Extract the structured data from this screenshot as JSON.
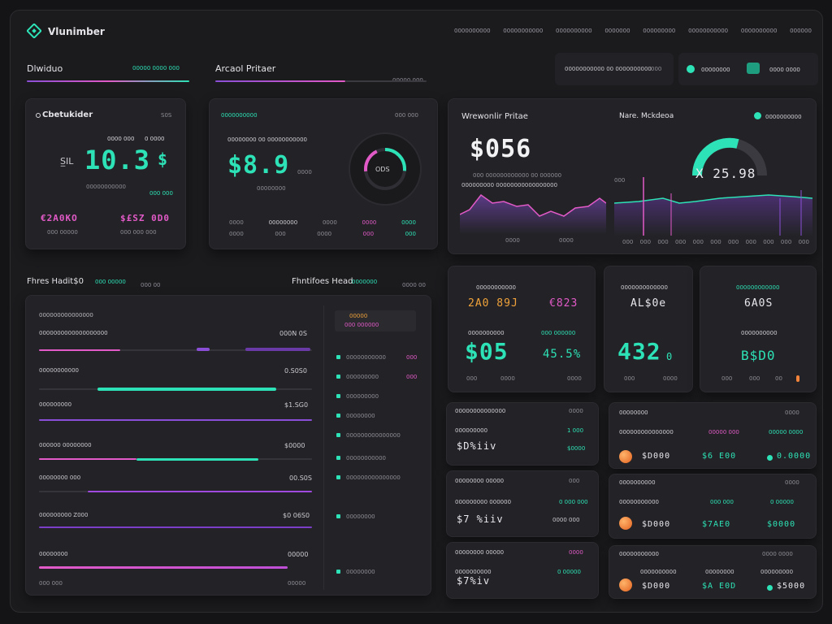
{
  "header": {
    "app_name": "Vlunimber",
    "nav": [
      "0000000000",
      "00000000000",
      "0000000000",
      "0000000",
      "000000000",
      "00000000000",
      "0000000000",
      "000000"
    ]
  },
  "subheader": {
    "left_title": "Dlwiduo",
    "left_meta": "00000 0000 000",
    "mid_title": "Arcaol Pritaer",
    "mid_meta": "00000  000",
    "search_text": "00000000000 00 0000000000",
    "search_small": "000",
    "pill1_text": "00000000",
    "pill2_text": "0000 0000"
  },
  "card1": {
    "title": "Cbetukider",
    "corner": "S0S",
    "sub_a": "0000 000",
    "sub_b": "0 0000",
    "prefix": "S̲IL",
    "value": "10.3",
    "suffix": "$",
    "caption": "00000000000",
    "tag": "000 000",
    "left_val": "€2A0KO",
    "right_val": "$£SZ 0D0",
    "left_sub": "000 00000",
    "right_sub": "000 000 000"
  },
  "card2": {
    "header": "0000000000",
    "meta_right": "000 000",
    "sub_a": "00000000  00  00000000000",
    "value": "$8.9",
    "unit": "0000",
    "caption": "00000000",
    "ring_value": "ODS",
    "row1": [
      "0000",
      "00000000",
      "0000",
      "0000",
      "0000"
    ],
    "row2": [
      "0000",
      "000",
      "0000",
      "000",
      "000"
    ]
  },
  "card3": {
    "title": "Wrewonlir Pritae",
    "right_title": "Nare. Mckdeoa",
    "legend": "0000000000",
    "value": "$056",
    "sub_a": "000   000000000000  00  000000",
    "sub_b": "000000000  00000000000000000",
    "right_value": "X 25.98",
    "right_small": "000",
    "x_labels_left": [
      "0000",
      "0000"
    ],
    "x_labels_right": [
      "000",
      "000",
      "000",
      "000",
      "000",
      "000",
      "000",
      "000",
      "000",
      "000",
      "000"
    ]
  },
  "card4": {
    "title": "Fhres Hadit$0",
    "title_meta": "000 00000",
    "mid_meta": "000 00",
    "right_title": "Fhntifoes Head",
    "right_meta": "0000000",
    "far_right": "0000 00",
    "list_header": "000000000000000",
    "rows": [
      {
        "label": "0000000000000000000",
        "value": "000N 0S"
      },
      {
        "label": "00000000000",
        "value": "0.S0S0"
      },
      {
        "label": "000000000",
        "value": "$1.SG0"
      },
      {
        "label": "000000   00000000",
        "value": "$0000"
      },
      {
        "label": "00000000 000",
        "value": "00.S0S"
      },
      {
        "label": "000000000 Z000",
        "value": "$0 06S0"
      },
      {
        "label": "00000000",
        "value": "00000"
      },
      {
        "label": "000 000",
        "value": "00000"
      }
    ],
    "side_header_a": "00000",
    "side_header_b": "000 000000",
    "side_items": [
      "00000000000",
      "000000000",
      "000000000",
      "00000000",
      "000000000000000",
      "00000000000",
      "000000000000000",
      "00000000",
      "00000000"
    ],
    "side_values": [
      "000",
      "000",
      "",
      "",
      "",
      "",
      "",
      "",
      ""
    ]
  },
  "stats": [
    {
      "header": "00000000000",
      "value_a": "2A0 89J",
      "value_b": "€823",
      "sub_l": "0000000000",
      "sub_r": "000 000000",
      "value": "$05",
      "value_r": "45.5%",
      "foot": [
        "000",
        "0000",
        "0000"
      ]
    },
    {
      "header": "0000000000000",
      "value_a": "AL$0e",
      "value_b": "",
      "sub_l": "",
      "sub_r": "",
      "value": "432",
      "value_r": "0",
      "foot": [
        "000",
        "0000"
      ]
    },
    {
      "header": "000000000000",
      "value_a": "6A0S",
      "value_b": "",
      "sub_l": "0000000000",
      "sub_r": "",
      "value": "B$D0",
      "value_r": "",
      "foot": [
        "000",
        "000",
        "00"
      ]
    }
  ],
  "mini_cards": [
    {
      "title": "00000000000000",
      "title_r": "0000",
      "label": "000000000",
      "label_r": "1 000",
      "value": "$D%iiv",
      "value_r": "$0000"
    },
    {
      "title": "00000000 00000",
      "title_r": "000",
      "label": "000000000 000000",
      "label_r": "0 000 000",
      "value": "$7 %iiv",
      "value_r": "0000  000"
    },
    {
      "title": "00000000 00000",
      "title_r": "0000",
      "label": "0000000000",
      "label_r": "0 00000",
      "value": "$7%iv",
      "value_r": ""
    }
  ],
  "wide_cards": [
    {
      "title": "00000000",
      "title_r": "0000",
      "label": "000000000000000",
      "mid": "00000  000",
      "right": "00000 0000",
      "v1": "$D000",
      "v2": "$6 E00",
      "v3": "0.0000"
    },
    {
      "title": "0000000000",
      "title_r": "0000",
      "label": "00000000000",
      "mid": "000 000",
      "right": "0 00000",
      "v1": "$D000",
      "v2": "$7AE0",
      "v3": "$0000"
    },
    {
      "title": "00000000000",
      "title_r": "0000 0000",
      "label": "0000000000",
      "mid": "00000000",
      "right": "000000000",
      "v1": "$D000",
      "v2": "$A E0D",
      "v3": "$5000"
    }
  ],
  "colors": {
    "accent": "#2de2b6",
    "pink": "#e25ac7",
    "purple": "#8a4fd6",
    "orange": "#f2833a",
    "bg": "#1b1b1e",
    "card": "#232327"
  },
  "icons": {
    "logo": "diamond-logo-icon"
  }
}
